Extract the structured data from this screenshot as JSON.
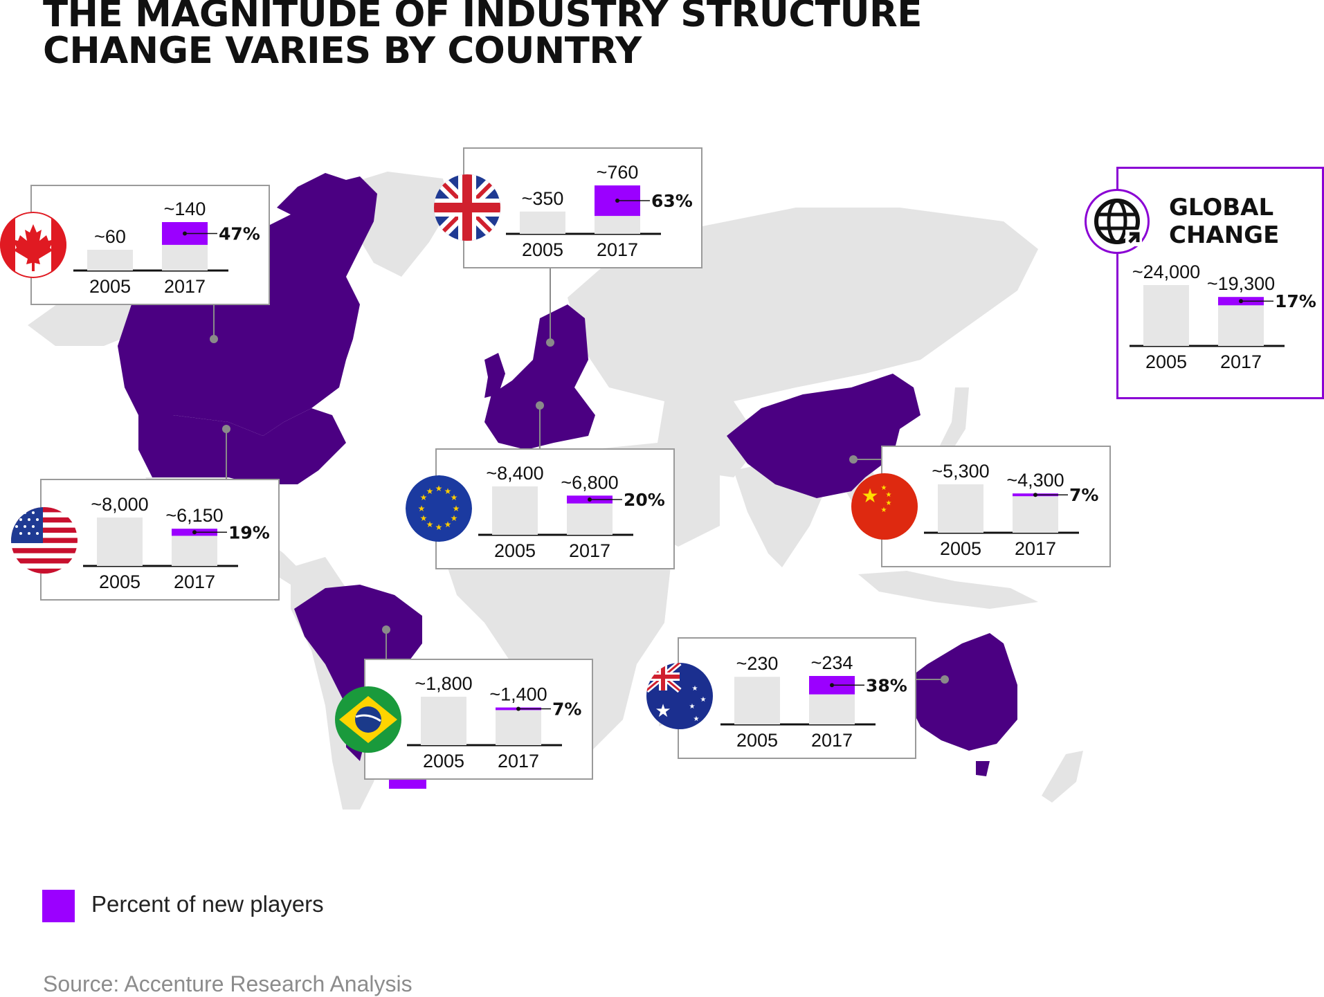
{
  "title_lines": [
    "THE MAGNITUDE OF INDUSTRY STRUCTURE",
    "CHANGE VARIES BY COUNTRY"
  ],
  "global_title_lines": [
    "GLOBAL",
    "CHANGE"
  ],
  "legend": {
    "label": "Percent of new players",
    "color": "#9b00ff"
  },
  "source": "Source: Accenture Research Analysis",
  "colors": {
    "highlight_country": "#4b0082",
    "other_land": "#e4e4e4",
    "bar_total": "#e6e6e6",
    "bar_new": "#9b00ff",
    "box_border": "#9a9a9a",
    "global_border": "#8a00d4"
  },
  "icons": {
    "global": "globe-icon"
  },
  "chart_data": [
    {
      "type": "bar",
      "region": "Canada",
      "flag": "canada-flag-icon",
      "categories": [
        "2005",
        "2017"
      ],
      "labels": [
        "~60",
        "~140"
      ],
      "values": [
        60,
        140
      ],
      "new_players_share": 0.47,
      "new_players_label": "47%",
      "ylim": [
        0,
        140
      ]
    },
    {
      "type": "bar",
      "region": "United Kingdom",
      "flag": "uk-flag-icon",
      "categories": [
        "2005",
        "2017"
      ],
      "labels": [
        "~350",
        "~760"
      ],
      "values": [
        350,
        760
      ],
      "new_players_share": 0.63,
      "new_players_label": "63%",
      "ylim": [
        0,
        760
      ]
    },
    {
      "type": "bar",
      "region": "United States",
      "flag": "usa-flag-icon",
      "categories": [
        "2005",
        "2017"
      ],
      "labels": [
        "~8,000",
        "~6,150"
      ],
      "values": [
        8000,
        6150
      ],
      "new_players_share": 0.19,
      "new_players_label": "19%",
      "ylim": [
        0,
        8000
      ]
    },
    {
      "type": "bar",
      "region": "European Union",
      "flag": "eu-flag-icon",
      "categories": [
        "2005",
        "2017"
      ],
      "labels": [
        "~8,400",
        "~6,800"
      ],
      "values": [
        8400,
        6800
      ],
      "new_players_share": 0.2,
      "new_players_label": "20%",
      "ylim": [
        0,
        8400
      ]
    },
    {
      "type": "bar",
      "region": "China",
      "flag": "china-flag-icon",
      "categories": [
        "2005",
        "2017"
      ],
      "labels": [
        "~5,300",
        "~4,300"
      ],
      "values": [
        5300,
        4300
      ],
      "new_players_share": 0.07,
      "new_players_label": "7%",
      "ylim": [
        0,
        5300
      ]
    },
    {
      "type": "bar",
      "region": "Brazil",
      "flag": "brazil-flag-icon",
      "categories": [
        "2005",
        "2017"
      ],
      "labels": [
        "~1,800",
        "~1,400"
      ],
      "values": [
        1800,
        1400
      ],
      "new_players_share": 0.07,
      "new_players_label": "7%",
      "ylim": [
        0,
        1800
      ]
    },
    {
      "type": "bar",
      "region": "Australia",
      "flag": "australia-flag-icon",
      "categories": [
        "2005",
        "2017"
      ],
      "labels": [
        "~230",
        "~234"
      ],
      "values": [
        230,
        234
      ],
      "new_players_share": 0.38,
      "new_players_label": "38%",
      "ylim": [
        0,
        234
      ]
    },
    {
      "type": "bar",
      "region": "Global",
      "categories": [
        "2005",
        "2017"
      ],
      "labels": [
        "~24,000",
        "~19,300"
      ],
      "values": [
        24000,
        19300
      ],
      "new_players_share": 0.17,
      "new_players_label": "17%",
      "ylim": [
        0,
        24000
      ]
    }
  ]
}
